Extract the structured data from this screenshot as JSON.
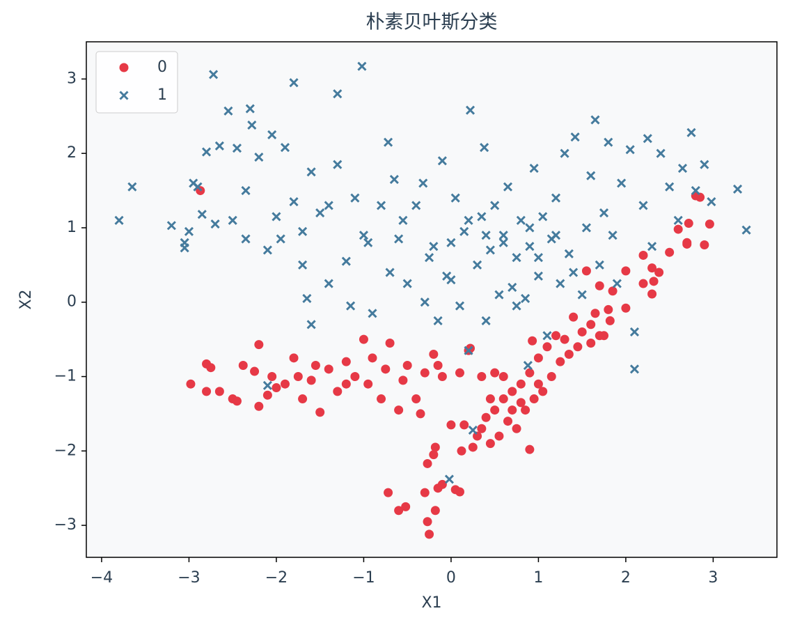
{
  "chart_data": {
    "type": "scatter",
    "title": "朴素贝叶斯分类",
    "x_label": "X1",
    "y_label": "X2",
    "xlim": [
      -4.175,
      3.73
    ],
    "ylim": [
      -3.43,
      3.5
    ],
    "xticks": [
      {
        "value": -4,
        "label": "−4"
      },
      {
        "value": -3,
        "label": "−3"
      },
      {
        "value": -2,
        "label": "−2"
      },
      {
        "value": -1,
        "label": "−1"
      },
      0,
      1,
      2,
      3
    ],
    "yticks": [
      {
        "value": -3,
        "label": "−3"
      },
      {
        "value": -2,
        "label": "−2"
      },
      {
        "value": -1,
        "label": "−1"
      },
      0,
      1,
      2,
      3
    ],
    "legend": "upper left",
    "series": [
      {
        "name": "0",
        "color": "#e63946",
        "marker": "circle",
        "x": [
          -2.87,
          -2.98,
          -2.8,
          -2.75,
          -2.8,
          -2.65,
          -2.5,
          -2.45,
          -2.38,
          -2.2,
          -2.2,
          -2.1,
          -2.05,
          -1.9,
          -1.8,
          -1.7,
          -1.6,
          -1.5,
          -1.4,
          -1.3,
          -1.2,
          -1.1,
          -1.0,
          -0.95,
          -0.9,
          -0.8,
          -0.75,
          -0.7,
          -0.6,
          -0.55,
          -0.5,
          -0.4,
          -0.35,
          -0.3,
          -0.2,
          -0.1,
          0.1,
          0.2,
          -0.25,
          -0.27,
          -0.6,
          -0.52,
          -0.72,
          -0.3,
          -0.18,
          -0.15,
          -0.1,
          0.05,
          0.1,
          -0.27,
          -0.2,
          -0.18,
          0.12,
          0.0,
          0.15,
          0.25,
          0.3,
          0.35,
          0.4,
          0.45,
          0.5,
          0.55,
          0.6,
          0.65,
          0.7,
          0.75,
          0.8,
          0.85,
          0.9,
          0.9,
          0.95,
          1.0,
          1.05,
          1.1,
          1.15,
          1.2,
          1.25,
          1.3,
          1.35,
          1.4,
          1.45,
          1.5,
          1.55,
          1.6,
          1.65,
          1.7,
          1.75,
          1.8,
          1.85,
          1.6,
          1.7,
          2.0,
          2.0,
          2.2,
          2.2,
          2.3,
          2.3,
          2.32,
          2.38,
          2.5,
          2.6,
          2.7,
          2.72,
          2.8,
          2.85,
          2.9,
          2.96,
          2.7,
          0.93,
          0.22,
          1.82,
          -0.15,
          -1.2,
          -1.55,
          -2.25,
          -2.0,
          -1.75,
          0.35,
          0.45,
          0.6,
          0.7,
          0.8,
          1.0,
          0.5
        ],
        "values": [
          1.5,
          -1.1,
          -0.83,
          -0.88,
          -1.2,
          -1.2,
          -1.3,
          -1.33,
          -0.85,
          -0.57,
          -1.4,
          -1.25,
          -1.0,
          -1.1,
          -0.75,
          -1.3,
          -1.05,
          -1.48,
          -0.9,
          -1.2,
          -0.8,
          -1.0,
          -0.5,
          -1.1,
          -0.75,
          -1.3,
          -0.9,
          -0.55,
          -1.45,
          -1.05,
          -0.85,
          -1.3,
          -1.5,
          -0.95,
          -0.7,
          -1.0,
          -0.95,
          -0.65,
          -3.12,
          -2.95,
          -2.8,
          -2.75,
          -2.56,
          -2.56,
          -2.8,
          -2.5,
          -2.45,
          -2.52,
          -2.55,
          -2.17,
          -2.05,
          -1.95,
          -2.0,
          -1.65,
          -1.65,
          -1.95,
          -1.8,
          -1.7,
          -1.55,
          -1.9,
          -1.45,
          -1.8,
          -1.3,
          -1.6,
          -1.2,
          -1.7,
          -1.1,
          -1.45,
          -1.98,
          -0.95,
          -1.3,
          -0.75,
          -1.2,
          -0.6,
          -1.0,
          -0.45,
          -0.8,
          -0.5,
          -0.7,
          -0.2,
          -0.6,
          -0.4,
          0.42,
          -0.3,
          -0.15,
          0.22,
          -0.45,
          -0.1,
          0.15,
          -0.55,
          -0.45,
          0.42,
          -0.08,
          0.25,
          0.63,
          0.46,
          0.11,
          0.28,
          0.4,
          0.67,
          0.98,
          0.78,
          1.06,
          1.43,
          1.41,
          0.77,
          1.05,
          0.8,
          -0.52,
          -0.62,
          -0.25,
          -0.85,
          -1.1,
          -0.85,
          -0.93,
          -1.15,
          -1.0,
          -1.0,
          -1.3,
          -1.0,
          -1.45,
          -1.35,
          -1.1,
          -0.95
        ]
      },
      {
        "name": "1",
        "color": "#457b9d",
        "marker": "x",
        "x": [
          -3.8,
          -3.65,
          -3.2,
          -3.05,
          -3.05,
          -3.0,
          -2.95,
          -2.9,
          -2.85,
          -2.8,
          -2.72,
          -2.7,
          -2.65,
          -2.55,
          -2.5,
          -2.45,
          -2.35,
          -2.35,
          -2.3,
          -2.28,
          -2.2,
          -2.1,
          -2.05,
          -1.95,
          -1.9,
          -1.8,
          -1.8,
          -1.7,
          -1.65,
          -1.6,
          -1.6,
          -1.5,
          -1.4,
          -1.3,
          -1.3,
          -1.2,
          -1.15,
          -1.1,
          -1.02,
          -0.95,
          -0.9,
          -0.8,
          -0.72,
          -0.7,
          -0.65,
          -0.6,
          -0.5,
          -0.4,
          -0.32,
          -0.25,
          -0.15,
          -0.1,
          -0.05,
          0.0,
          0.05,
          0.1,
          0.15,
          0.2,
          0.22,
          0.3,
          0.35,
          0.38,
          0.4,
          0.45,
          0.5,
          0.55,
          0.6,
          0.65,
          0.7,
          0.75,
          0.8,
          0.85,
          0.9,
          0.95,
          1.0,
          1.05,
          1.1,
          1.15,
          1.2,
          1.25,
          1.3,
          1.35,
          1.42,
          1.5,
          1.55,
          1.6,
          1.65,
          1.7,
          1.75,
          1.8,
          1.85,
          1.9,
          1.95,
          2.05,
          2.1,
          2.1,
          2.2,
          2.25,
          2.3,
          2.4,
          2.5,
          2.6,
          2.65,
          2.75,
          2.8,
          2.9,
          2.98,
          3.28,
          3.38,
          0.25,
          -0.02,
          -2.1,
          0.88,
          -0.3,
          -1.7,
          -2.0,
          -0.55,
          0.4,
          0.6,
          0.9,
          1.0,
          1.2,
          0.2,
          -0.2,
          -1.0,
          -1.4,
          0.75,
          1.4,
          0.0
        ],
        "values": [
          1.1,
          1.55,
          1.03,
          0.8,
          0.73,
          0.95,
          1.6,
          1.55,
          1.18,
          2.02,
          3.06,
          1.05,
          2.1,
          2.57,
          1.1,
          2.07,
          0.85,
          1.5,
          2.6,
          2.38,
          1.95,
          0.7,
          2.25,
          0.85,
          2.08,
          2.95,
          1.35,
          0.95,
          0.05,
          1.75,
          -0.3,
          1.2,
          0.25,
          2.8,
          1.85,
          0.55,
          -0.05,
          1.4,
          3.17,
          0.8,
          -0.15,
          1.3,
          2.15,
          0.4,
          1.65,
          0.85,
          0.25,
          1.3,
          1.6,
          0.6,
          -0.25,
          1.9,
          0.35,
          0.8,
          1.4,
          -0.05,
          0.95,
          -0.65,
          2.58,
          0.5,
          1.15,
          2.08,
          -0.25,
          0.7,
          1.3,
          0.1,
          0.9,
          1.55,
          0.2,
          0.6,
          1.1,
          0.05,
          0.75,
          1.8,
          0.35,
          1.15,
          -0.45,
          0.85,
          1.4,
          0.25,
          2.0,
          0.65,
          2.22,
          0.1,
          1.0,
          1.7,
          2.45,
          0.5,
          1.2,
          2.15,
          0.9,
          0.25,
          1.6,
          2.05,
          -0.4,
          -0.9,
          1.3,
          2.2,
          0.75,
          2.0,
          1.55,
          1.1,
          1.8,
          2.28,
          1.5,
          1.85,
          1.35,
          1.52,
          0.97,
          -1.72,
          -2.38,
          -1.12,
          -0.85,
          0.0,
          0.5,
          1.15,
          1.1,
          0.9,
          0.8,
          1.0,
          0.6,
          0.9,
          1.1,
          0.75,
          0.9,
          1.3,
          -0.05,
          0.4,
          0.3
        ]
      }
    ]
  }
}
